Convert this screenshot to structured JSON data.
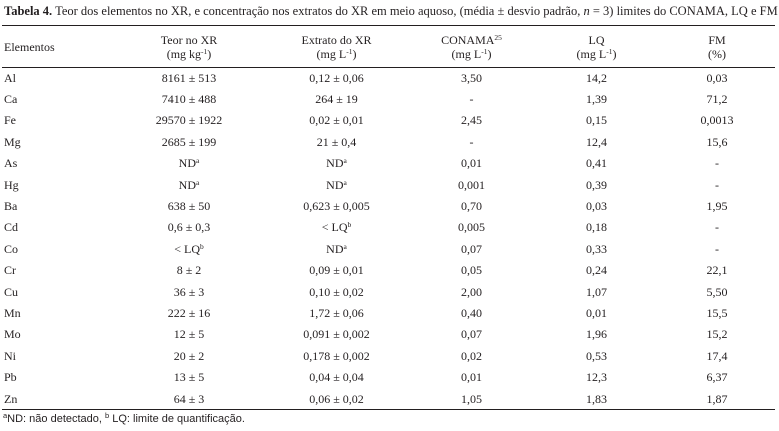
{
  "caption": {
    "label": "Tabela 4.",
    "text_before_n": " Teor dos elementos no XR, e concentração nos extratos do XR em meio aquoso, (média ± desvio padrão, ",
    "n": "n",
    "text_after_n": " = 3) limites do CONAMA, LQ e FM"
  },
  "headers": [
    {
      "line1": "Elementos",
      "line2": "",
      "sup": ""
    },
    {
      "line1": "Teor no XR",
      "line2": "(mg kg-1)",
      "sup": ""
    },
    {
      "line1": "Extrato do XR",
      "line2": "(mg L-1)",
      "sup": ""
    },
    {
      "line1": "CONAMA",
      "line2": "(mg L-1)",
      "sup": "25"
    },
    {
      "line1": "LQ",
      "line2": "(mg L-1)",
      "sup": ""
    },
    {
      "line1": "FM",
      "line2": "(%)",
      "sup": ""
    }
  ],
  "rows": [
    {
      "el": "Al",
      "teor": "8161 ± 513",
      "teor_sup": "",
      "ext": "0,12 ± 0,06",
      "ext_sup": "",
      "conama": "3,50",
      "lq": "14,2",
      "fm": "0,03"
    },
    {
      "el": "Ca",
      "teor": "7410 ± 488",
      "teor_sup": "",
      "ext": "264 ± 19",
      "ext_sup": "",
      "conama": "-",
      "lq": "1,39",
      "fm": "71,2"
    },
    {
      "el": "Fe",
      "teor": "29570 ± 1922",
      "teor_sup": "",
      "ext": "0,02 ± 0,01",
      "ext_sup": "",
      "conama": "2,45",
      "lq": "0,15",
      "fm": "0,0013"
    },
    {
      "el": "Mg",
      "teor": "2685 ± 199",
      "teor_sup": "",
      "ext": "21 ± 0,4",
      "ext_sup": "",
      "conama": "-",
      "lq": "12,4",
      "fm": "15,6"
    },
    {
      "el": "As",
      "teor": "ND",
      "teor_sup": "a",
      "ext": "ND",
      "ext_sup": "a",
      "conama": "0,01",
      "lq": "0,41",
      "fm": "-"
    },
    {
      "el": "Hg",
      "teor": "ND",
      "teor_sup": "a",
      "ext": "ND",
      "ext_sup": "a",
      "conama": "0,001",
      "lq": "0,39",
      "fm": "-"
    },
    {
      "el": "Ba",
      "teor": "638 ± 50",
      "teor_sup": "",
      "ext": "0,623 ± 0,005",
      "ext_sup": "",
      "conama": "0,70",
      "lq": "0,03",
      "fm": "1,95"
    },
    {
      "el": "Cd",
      "teor": "0,6 ± 0,3",
      "teor_sup": "",
      "ext": "< LQ",
      "ext_sup": "b",
      "conama": "0,005",
      "lq": "0,18",
      "fm": "-"
    },
    {
      "el": "Co",
      "teor": "< LQ",
      "teor_sup": "b",
      "ext": "ND",
      "ext_sup": "a",
      "conama": "0,07",
      "lq": "0,33",
      "fm": "-"
    },
    {
      "el": "Cr",
      "teor": "8 ± 2",
      "teor_sup": "",
      "ext": "0,09 ± 0,01",
      "ext_sup": "",
      "conama": "0,05",
      "lq": "0,24",
      "fm": "22,1"
    },
    {
      "el": "Cu",
      "teor": "36 ± 3",
      "teor_sup": "",
      "ext": "0,10 ± 0,02",
      "ext_sup": "",
      "conama": "2,00",
      "lq": "1,07",
      "fm": "5,50"
    },
    {
      "el": "Mn",
      "teor": "222 ± 16",
      "teor_sup": "",
      "ext": "1,72 ± 0,06",
      "ext_sup": "",
      "conama": "0,40",
      "lq": "0,01",
      "fm": "15,5"
    },
    {
      "el": "Mo",
      "teor": "12 ± 5",
      "teor_sup": "",
      "ext": "0,091 ± 0,002",
      "ext_sup": "",
      "conama": "0,07",
      "lq": "1,96",
      "fm": "15,2"
    },
    {
      "el": "Ni",
      "teor": "20 ± 2",
      "teor_sup": "",
      "ext": "0,178 ± 0,002",
      "ext_sup": "",
      "conama": "0,02",
      "lq": "0,53",
      "fm": "17,4"
    },
    {
      "el": "Pb",
      "teor": "13 ± 5",
      "teor_sup": "",
      "ext": "0,04 ± 0,04",
      "ext_sup": "",
      "conama": "0,01",
      "lq": "12,3",
      "fm": "6,37"
    },
    {
      "el": "Zn",
      "teor": "64 ± 3",
      "teor_sup": "",
      "ext": "0,06 ± 0,02",
      "ext_sup": "",
      "conama": "1,05",
      "lq": "1,83",
      "fm": "1,87"
    }
  ],
  "footnote": {
    "a_mark": "a",
    "a_text": "ND: não detectado, ",
    "b_mark": "b",
    "b_text": " LQ: limite de quantificação."
  }
}
